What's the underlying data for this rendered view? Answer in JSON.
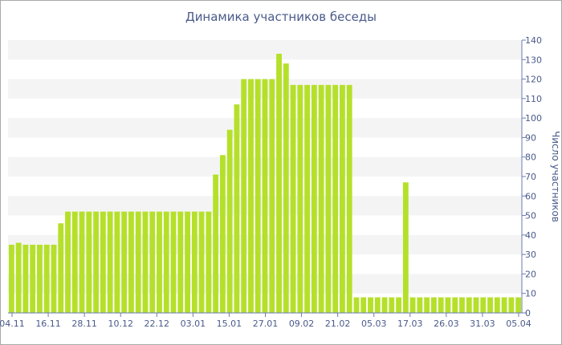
{
  "chart_data": {
    "type": "bar",
    "title": "Динамика участников беседы",
    "xlabel": "",
    "ylabel": "Число участников",
    "ylim": [
      0,
      140
    ],
    "yticks": [
      0,
      10,
      20,
      30,
      40,
      50,
      60,
      70,
      80,
      90,
      100,
      110,
      120,
      130,
      140
    ],
    "x_tick_labels": [
      "04.11",
      "16.11",
      "28.11",
      "10.12",
      "22.12",
      "03.01",
      "15.01",
      "27.01",
      "09.02",
      "21.02",
      "05.03",
      "17.03",
      "26.03",
      "31.03",
      "05.04"
    ],
    "grid": "horizontal alternating bands",
    "bar_color": "#b5e02a",
    "series": [
      {
        "values": [
          35,
          36,
          35,
          35,
          35,
          35,
          35,
          46,
          52,
          52,
          52,
          52,
          52,
          52,
          52,
          52,
          52,
          52,
          52,
          52,
          52,
          52,
          52,
          52,
          52,
          52,
          52,
          52,
          52,
          71,
          81,
          94,
          107,
          120,
          120,
          120,
          120,
          120,
          133,
          128,
          117,
          117,
          117,
          117,
          117,
          117,
          117,
          117,
          117,
          8,
          8,
          8,
          8,
          8,
          8,
          8,
          67,
          8,
          8,
          8,
          8,
          8,
          8,
          8,
          8,
          8,
          8,
          8,
          8,
          8,
          8,
          8,
          8
        ]
      }
    ]
  }
}
